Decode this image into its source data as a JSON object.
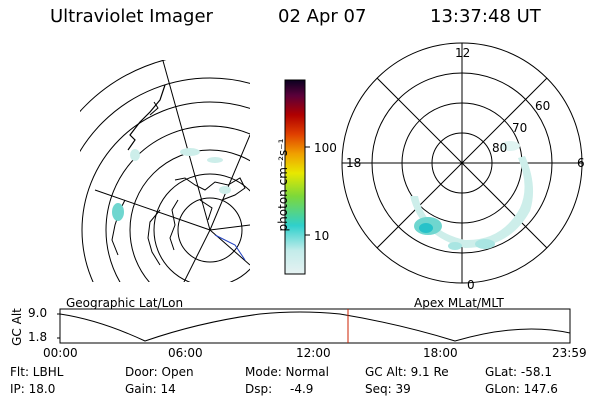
{
  "header": {
    "instrument": "Ultraviolet Imager",
    "date": "02 Apr 07",
    "time": "13:37:48 UT"
  },
  "geo_panel": {
    "label": "Geographic Lat/Lon"
  },
  "colorbar": {
    "unit_label": "photon cm⁻²s⁻¹",
    "ticks": [
      "100",
      "10"
    ]
  },
  "polar_panel": {
    "label": "Apex MLat/MLT",
    "mlt_labels": {
      "top": "12",
      "left": "18",
      "right": "6",
      "bottom": "0"
    },
    "lat_labels": [
      "60",
      "70",
      "80"
    ]
  },
  "altitude_plot": {
    "y_label": "GC Alt",
    "y_ticks": [
      "9.0",
      "1.8"
    ],
    "x_ticks": [
      "00:00",
      "06:00",
      "12:00",
      "18:00",
      "23:59"
    ],
    "current_time_marker_color": "#cc2200"
  },
  "status": {
    "row1": {
      "filter": "Flt: LBHL",
      "door": "Door: Open",
      "mode": "Mode: Normal",
      "gc_alt": "GC Alt: 9.1 Re",
      "glat": "GLat: -58.1"
    },
    "row2": {
      "ip": "IP: 18.0",
      "gain": "Gain: 14",
      "dsp_label": "Dsp:",
      "dsp_value": "-4.9",
      "seq": "Seq: 39",
      "glon": "GLon: 147.6"
    }
  },
  "colors": {
    "aurora_low": "#cdeeea",
    "aurora_mid": "#6fd6cf",
    "aurora_high": "#27c2c9",
    "colorbar_stops": [
      "#e6f2f2",
      "#c3ecea",
      "#2fd0cc",
      "#7cd83a",
      "#e8e800",
      "#f0a000",
      "#e04000",
      "#b00000",
      "#5a003a",
      "#0a0020"
    ]
  }
}
